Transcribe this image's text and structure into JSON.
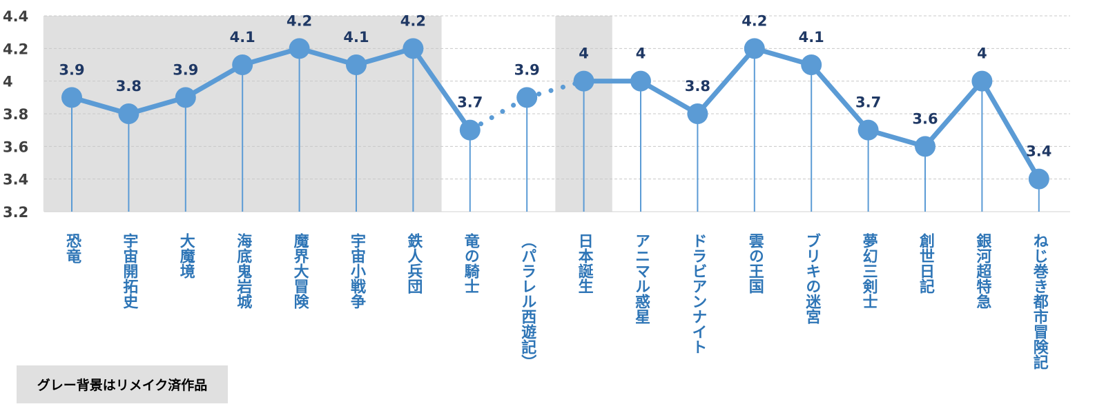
{
  "chart_data": {
    "type": "line",
    "categories": [
      "恐竜",
      "宇宙開拓史",
      "大魔境",
      "海底鬼岩城",
      "魔界大冒険",
      "宇宙小戦争",
      "鉄人兵団",
      "竜の騎士",
      "（パラレル西遊記）",
      "日本誕生",
      "アニマル惑星",
      "ドラビアンナイト",
      "雲の王国",
      "ブリキの迷宮",
      "夢幻三剣士",
      "創世日記",
      "銀河超特急",
      "ねじ巻き都市冒険記"
    ],
    "values": [
      3.9,
      3.8,
      3.9,
      4.1,
      4.2,
      4.1,
      4.2,
      3.7,
      3.9,
      4,
      4,
      3.8,
      4.2,
      4.1,
      3.7,
      3.6,
      4,
      3.4
    ],
    "data_labels": [
      "3.9",
      "3.8",
      "3.9",
      "4.1",
      "4.2",
      "4.1",
      "4.2",
      "3.7",
      "3.9",
      "4",
      "4",
      "3.8",
      "4.2",
      "4.1",
      "3.7",
      "3.6",
      "4",
      "3.4"
    ],
    "yticks": [
      "3.2",
      "3.4",
      "3.6",
      "3.8",
      "4",
      "4.2",
      "4.4"
    ],
    "ylim": [
      3.2,
      4.4
    ],
    "grid": true,
    "dotted_segments": [
      [
        7,
        8
      ],
      [
        8,
        9
      ]
    ],
    "highlighted_categories": [
      0,
      1,
      2,
      3,
      4,
      5,
      6,
      9
    ],
    "line_color": "#5b9bd5",
    "highlight_color": "#e0e0e0",
    "label_color": "#1f3864",
    "category_color": "#2e75b6"
  },
  "note": "グレー背景はリメイク済作品"
}
